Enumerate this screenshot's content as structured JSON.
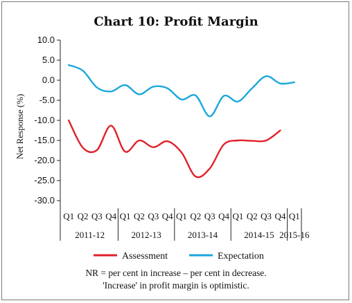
{
  "chart_data": {
    "type": "line",
    "title": "Chart 10: Profit Margin",
    "ylabel": "Net Response (%)",
    "ylim": [
      -30,
      10
    ],
    "yticks": [
      10,
      5,
      0,
      -5,
      -10,
      -15,
      -20,
      -25,
      -30
    ],
    "ytick_labels": [
      "10.0",
      "5.0",
      "0.0",
      "-5.0",
      "-10.0",
      "-15.0",
      "-20.0",
      "-25.0",
      "-30.0"
    ],
    "quarters": [
      "Q1",
      "Q2",
      "Q3",
      "Q4",
      "Q1",
      "Q2",
      "Q3",
      "Q4",
      "Q1",
      "Q2",
      "Q3",
      "Q4",
      "Q1",
      "Q2",
      "Q3",
      "Q4",
      "Q1"
    ],
    "years": [
      {
        "label": "2011-12",
        "span": 4
      },
      {
        "label": "2012-13",
        "span": 4
      },
      {
        "label": "2013-14",
        "span": 4
      },
      {
        "label": "2014-15",
        "span": 4
      },
      {
        "label": "2015-16",
        "span": 1
      }
    ],
    "series": [
      {
        "name": "Assessment",
        "color": "#e0202a",
        "values": [
          -10.0,
          -16.8,
          -17.4,
          -11.3,
          -17.8,
          -15.0,
          -16.7,
          -15.2,
          -18.0,
          -24.0,
          -22.0,
          -16.0,
          -15.0,
          -15.1,
          -15.0,
          -12.5,
          null
        ]
      },
      {
        "name": "Expectation",
        "color": "#1aa7dc",
        "values": [
          3.8,
          2.4,
          -1.8,
          -2.8,
          -1.2,
          -3.5,
          -1.6,
          -2.0,
          -4.8,
          -3.8,
          -9.0,
          -3.9,
          -5.3,
          -2.0,
          1.0,
          -0.8,
          -0.5
        ]
      }
    ],
    "legend_position": "bottom",
    "grid": false,
    "notes": [
      "NR = per cent in increase – per cent in decrease.",
      "'Increase' in profit margin is optimistic."
    ]
  }
}
